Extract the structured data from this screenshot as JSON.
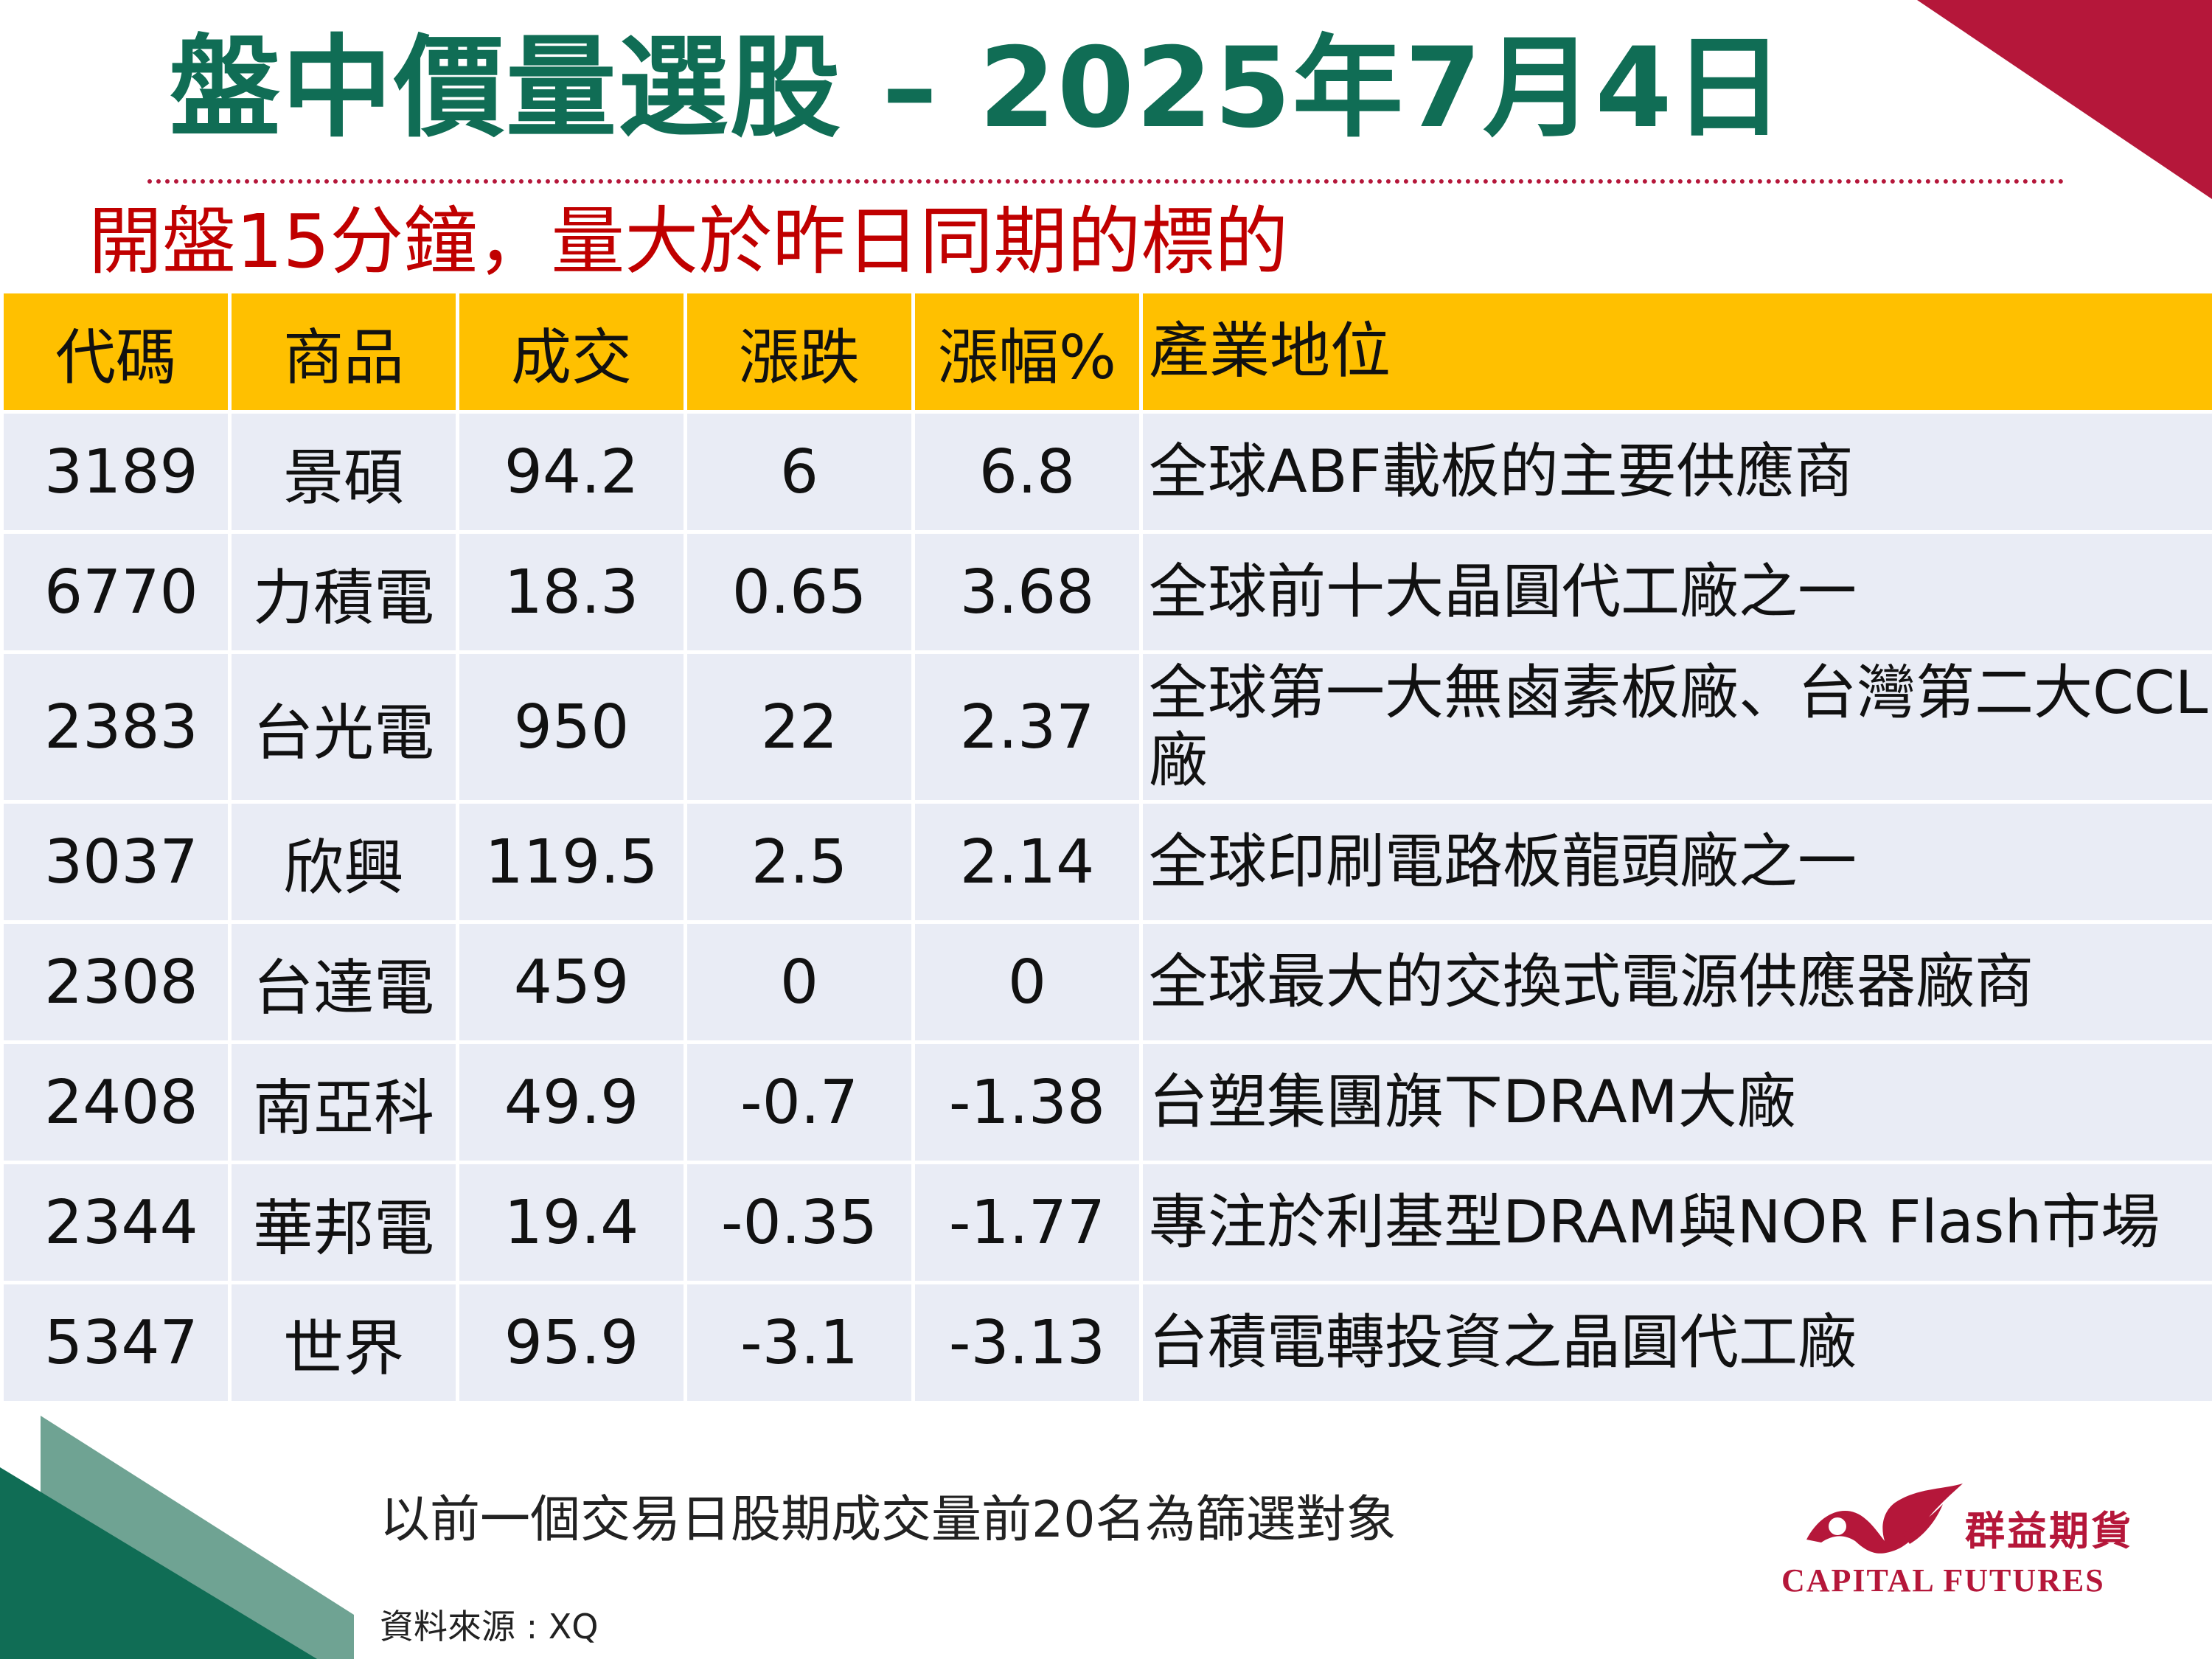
{
  "title": "盤中價量選股 – 2025年7月4日",
  "subtitle": "開盤15分鐘，量大於昨日同期的標的",
  "table": {
    "headers": [
      "代碼",
      "商品",
      "成交",
      "漲跌",
      "漲幅%",
      "產業地位"
    ],
    "rows": [
      {
        "code": "3189",
        "name": "景碩",
        "price": "94.2",
        "change": "6",
        "pct": "6.8",
        "industry": "全球ABF載板的主要供應商"
      },
      {
        "code": "6770",
        "name": "力積電",
        "price": "18.3",
        "change": "0.65",
        "pct": "3.68",
        "industry": "全球前十大晶圓代工廠之一"
      },
      {
        "code": "2383",
        "name": "台光電",
        "price": "950",
        "change": "22",
        "pct": "2.37",
        "industry": "全球第一大無鹵素板廠、台灣第二大CCL廠"
      },
      {
        "code": "3037",
        "name": "欣興",
        "price": "119.5",
        "change": "2.5",
        "pct": "2.14",
        "industry": "全球印刷電路板龍頭廠之一"
      },
      {
        "code": "2308",
        "name": "台達電",
        "price": "459",
        "change": "0",
        "pct": "0",
        "industry": "全球最大的交換式電源供應器廠商"
      },
      {
        "code": "2408",
        "name": "南亞科",
        "price": "49.9",
        "change": "-0.7",
        "pct": "-1.38",
        "industry": "台塑集團旗下DRAM大廠"
      },
      {
        "code": "2344",
        "name": "華邦電",
        "price": "19.4",
        "change": "-0.35",
        "pct": "-1.77",
        "industry": "專注於利基型DRAM與NOR Flash市場"
      },
      {
        "code": "5347",
        "name": "世界",
        "price": "95.9",
        "change": "-3.1",
        "pct": "-3.13",
        "industry": "台積電轉投資之晶圓代工廠"
      }
    ]
  },
  "footnote": "以前一個交易日股期成交量前20名為篩選對象",
  "source": "資料來源 : XQ",
  "logo": {
    "name_zh": "群益期貨",
    "name_en": "CAPITAL FUTURES",
    "icon": "eagle-logo-icon"
  },
  "colors": {
    "title": "#106d55",
    "subtitle": "#c00000",
    "header_bg": "#ffc000",
    "row_bg": "#e9ecf5",
    "accent_red": "#b5173a",
    "accent_green": "#106d55"
  }
}
